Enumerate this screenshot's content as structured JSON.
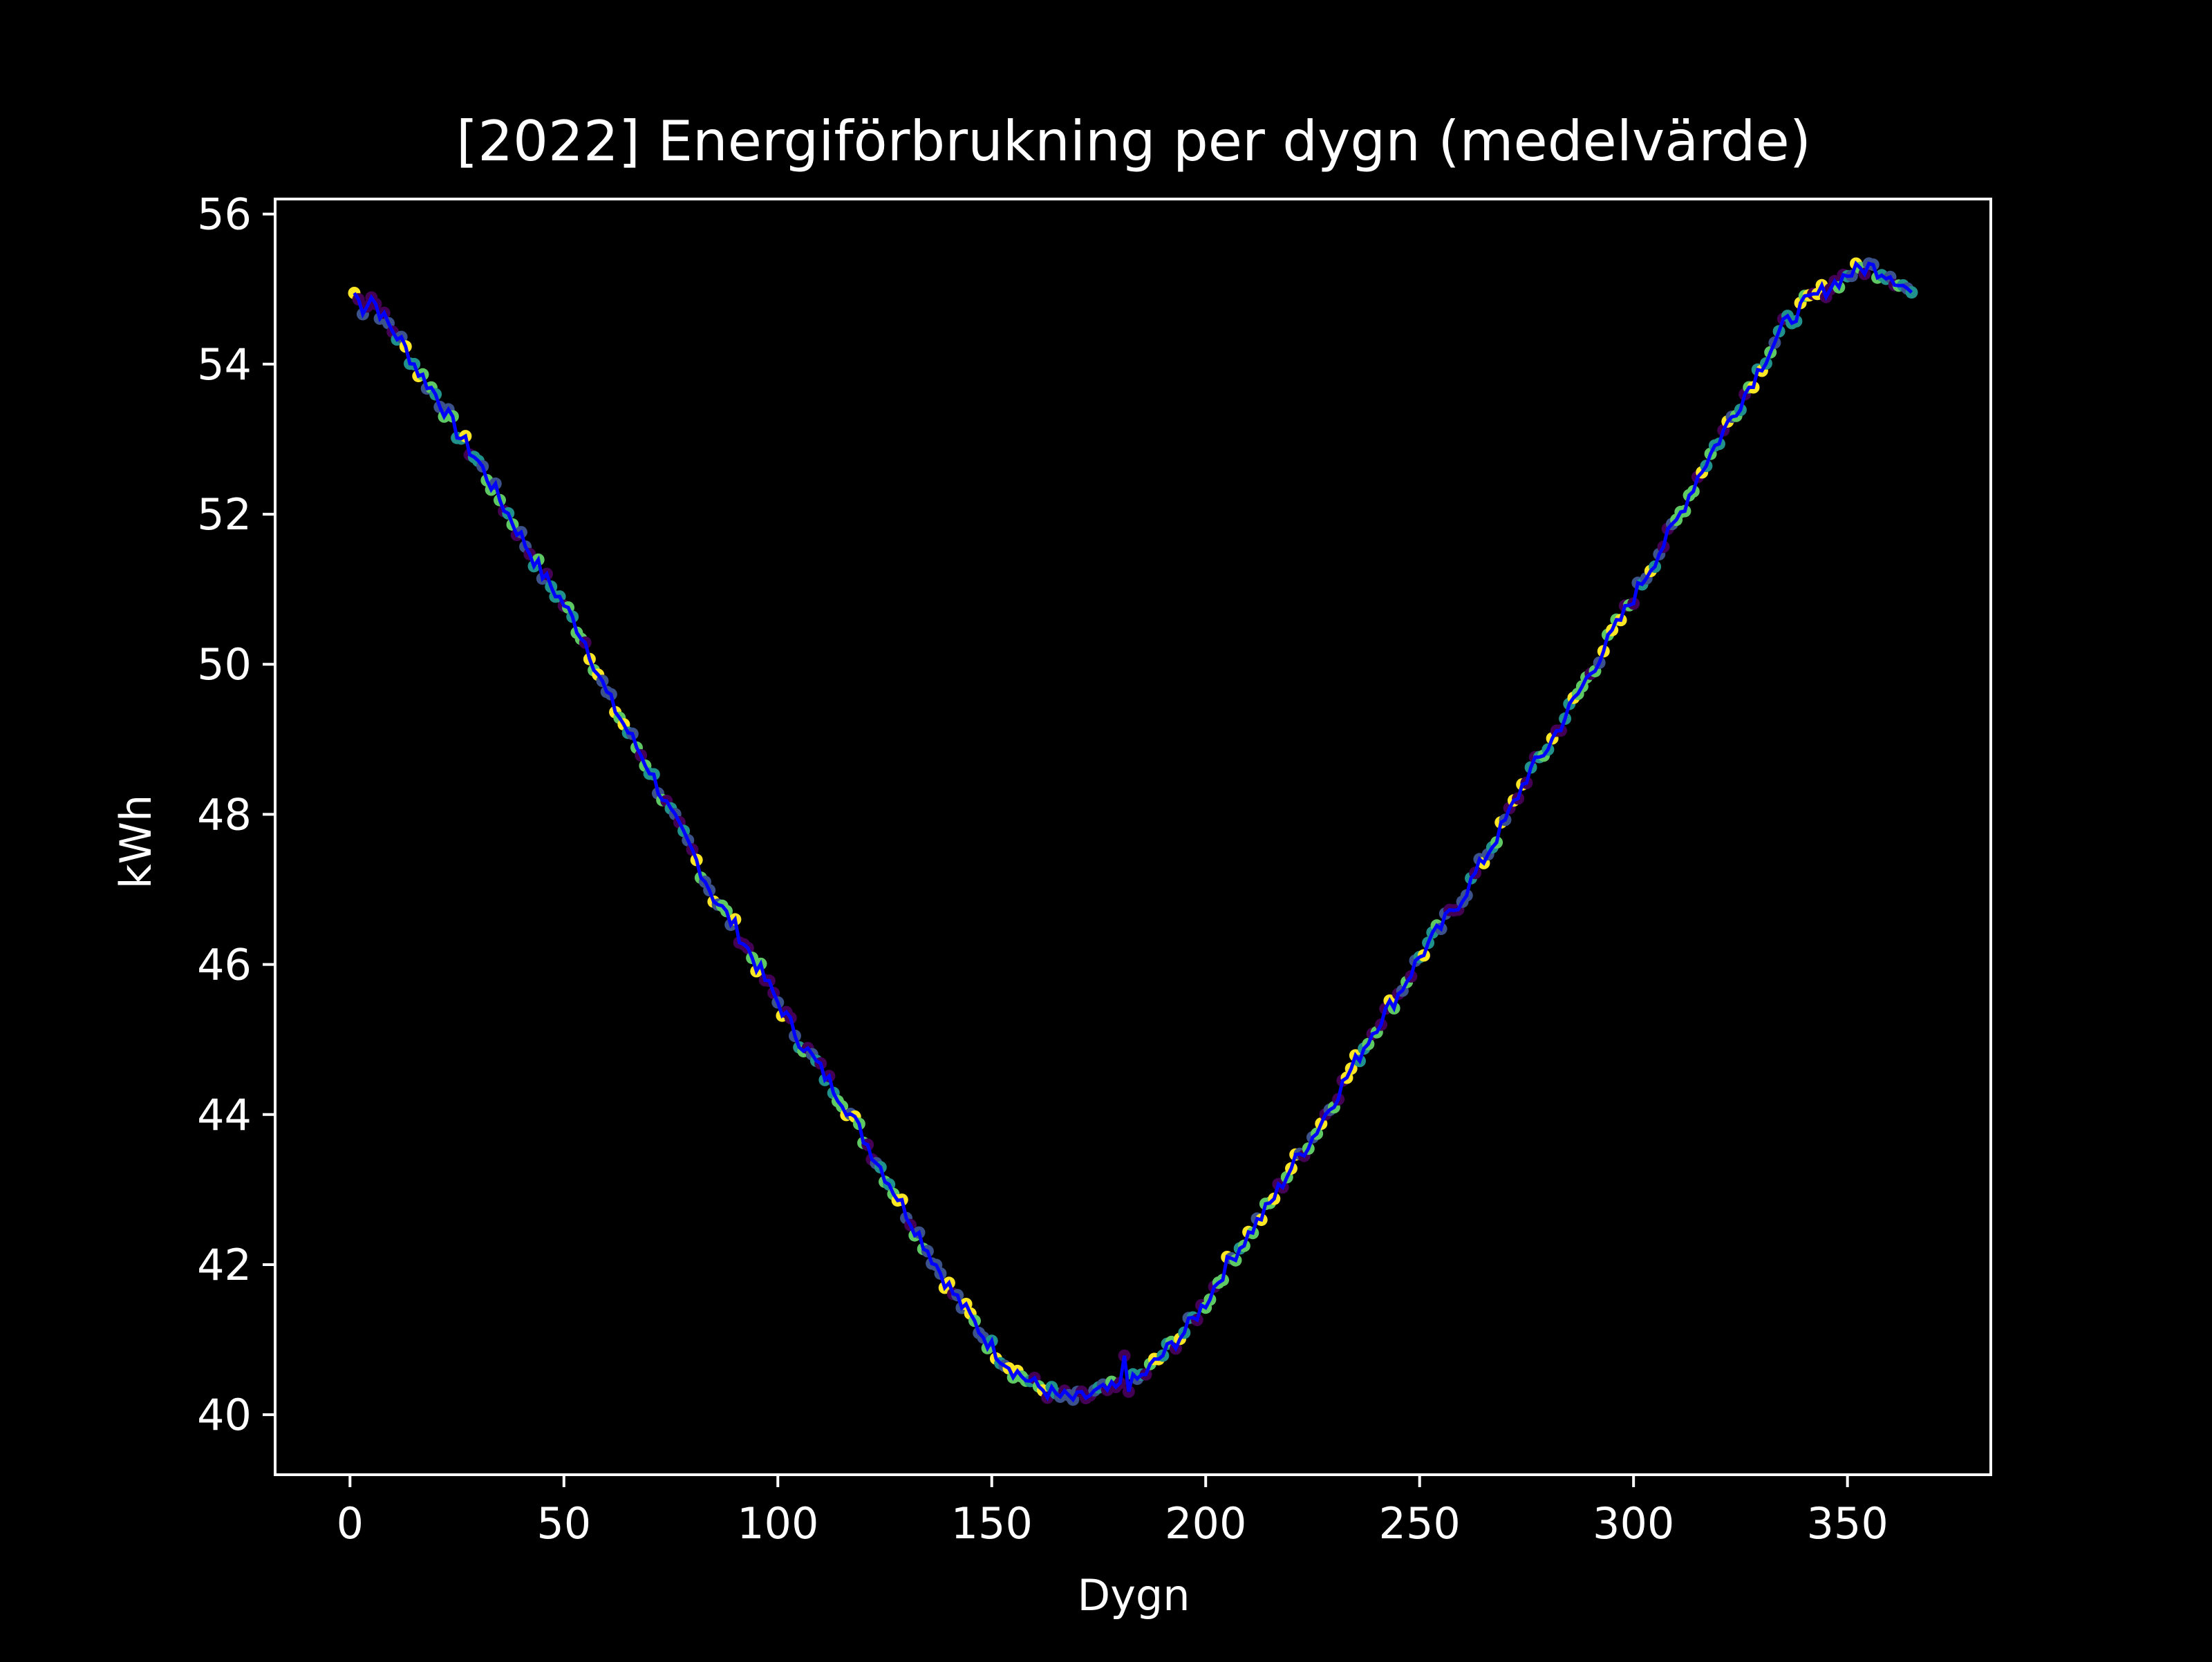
{
  "chart_data": {
    "type": "line",
    "title": "[2022] Energiförbrukning per dygn (medelvärde)",
    "xlabel": "Dygn",
    "ylabel": "kWh",
    "xlim": [
      -17.5,
      383.5
    ],
    "ylim": [
      39.2,
      56.2
    ],
    "xticks": [
      0,
      50,
      100,
      150,
      200,
      250,
      300,
      350
    ],
    "yticks": [
      40,
      42,
      44,
      46,
      48,
      50,
      52,
      54,
      56
    ],
    "grid": false,
    "legend": "none",
    "background": "#000000",
    "axis_color": "#ffffff",
    "line_color": "#0000ff",
    "marker_colormap": [
      "#440154",
      "#3b528b",
      "#21918c",
      "#5ec962",
      "#fde725"
    ],
    "anchors": [
      [
        1,
        54.95
      ],
      [
        3,
        54.75
      ],
      [
        5,
        54.9
      ],
      [
        8,
        54.6
      ],
      [
        12,
        54.3
      ],
      [
        16,
        53.9
      ],
      [
        20,
        53.6
      ],
      [
        25,
        53.1
      ],
      [
        30,
        52.7
      ],
      [
        35,
        52.2
      ],
      [
        40,
        51.7
      ],
      [
        45,
        51.2
      ],
      [
        50,
        50.8
      ],
      [
        55,
        50.3
      ],
      [
        60,
        49.6
      ],
      [
        65,
        49.1
      ],
      [
        70,
        48.6
      ],
      [
        75,
        48.0
      ],
      [
        80,
        47.5
      ],
      [
        85,
        46.9
      ],
      [
        90,
        46.5
      ],
      [
        95,
        46.0
      ],
      [
        100,
        45.5
      ],
      [
        105,
        45.0
      ],
      [
        110,
        44.6
      ],
      [
        115,
        44.2
      ],
      [
        120,
        43.7
      ],
      [
        125,
        43.2
      ],
      [
        130,
        42.7
      ],
      [
        135,
        42.2
      ],
      [
        140,
        41.7
      ],
      [
        145,
        41.3
      ],
      [
        150,
        40.9
      ],
      [
        155,
        40.6
      ],
      [
        160,
        40.4
      ],
      [
        165,
        40.25
      ],
      [
        170,
        40.2
      ],
      [
        175,
        40.3
      ],
      [
        180,
        40.35
      ],
      [
        181,
        40.8
      ],
      [
        182,
        40.4
      ],
      [
        185,
        40.5
      ],
      [
        190,
        40.8
      ],
      [
        195,
        41.1
      ],
      [
        200,
        41.5
      ],
      [
        205,
        42.0
      ],
      [
        210,
        42.4
      ],
      [
        215,
        42.8
      ],
      [
        220,
        43.3
      ],
      [
        225,
        43.7
      ],
      [
        230,
        44.2
      ],
      [
        235,
        44.7
      ],
      [
        240,
        45.2
      ],
      [
        245,
        45.6
      ],
      [
        250,
        46.1
      ],
      [
        255,
        46.5
      ],
      [
        260,
        46.9
      ],
      [
        265,
        47.4
      ],
      [
        270,
        47.9
      ],
      [
        275,
        48.5
      ],
      [
        280,
        48.9
      ],
      [
        285,
        49.4
      ],
      [
        290,
        49.9
      ],
      [
        295,
        50.4
      ],
      [
        300,
        50.9
      ],
      [
        305,
        51.4
      ],
      [
        310,
        51.9
      ],
      [
        315,
        52.5
      ],
      [
        320,
        53.0
      ],
      [
        325,
        53.5
      ],
      [
        330,
        54.0
      ],
      [
        335,
        54.5
      ],
      [
        340,
        54.8
      ],
      [
        345,
        55.0
      ],
      [
        350,
        55.2
      ],
      [
        355,
        55.3
      ],
      [
        360,
        55.2
      ],
      [
        365,
        54.95
      ]
    ]
  }
}
